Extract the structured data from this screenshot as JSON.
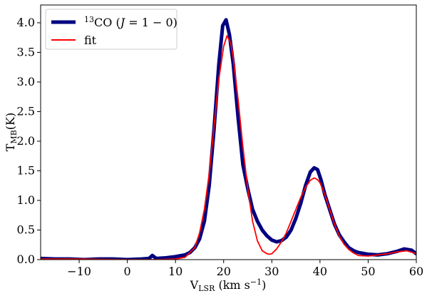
{
  "chart_data": {
    "type": "line",
    "xlabel": "V_LSR (km s^-1)",
    "ylabel": "T_MB(K)",
    "xlim": [
      -18,
      60
    ],
    "ylim": [
      0,
      4.3
    ],
    "xticks": [
      -10,
      0,
      10,
      20,
      30,
      40,
      50,
      60
    ],
    "yticks": [
      0.0,
      0.5,
      1.0,
      1.5,
      2.0,
      2.5,
      3.0,
      3.5,
      4.0
    ],
    "xtick_labels": [
      "−10",
      "0",
      "10",
      "20",
      "30",
      "40",
      "50",
      "60"
    ],
    "ytick_labels": [
      "0.0",
      "0.5",
      "1.0",
      "1.5",
      "2.0",
      "2.5",
      "3.0",
      "3.5",
      "4.0"
    ],
    "grid": false,
    "legend_position": "top-left",
    "series": [
      {
        "name": "13CO (J = 1 − 0)",
        "color": "#000080",
        "x": [
          -18,
          -15,
          -12,
          -9,
          -6,
          -3,
          0,
          3,
          4.5,
          5.2,
          6,
          8,
          10,
          12,
          13,
          14,
          15,
          16,
          17,
          18,
          19,
          19.8,
          20.5,
          21.2,
          22,
          23,
          24,
          25,
          26,
          27,
          28,
          29,
          30,
          31,
          32,
          33,
          34,
          35,
          36,
          37,
          38,
          38.8,
          39.5,
          40.2,
          41,
          42,
          43,
          44,
          45,
          46,
          47,
          48,
          50,
          52,
          54,
          56,
          57.5,
          59,
          60
        ],
        "y": [
          0.02,
          0.01,
          0.01,
          0.0,
          0.01,
          0.01,
          0.0,
          0.01,
          0.02,
          0.07,
          0.02,
          0.03,
          0.05,
          0.08,
          0.12,
          0.2,
          0.35,
          0.65,
          1.25,
          2.2,
          3.3,
          3.95,
          4.05,
          3.8,
          3.3,
          2.4,
          1.6,
          1.2,
          0.85,
          0.65,
          0.5,
          0.4,
          0.33,
          0.3,
          0.32,
          0.38,
          0.5,
          0.7,
          0.95,
          1.25,
          1.48,
          1.55,
          1.52,
          1.35,
          1.1,
          0.85,
          0.6,
          0.42,
          0.3,
          0.2,
          0.15,
          0.12,
          0.09,
          0.08,
          0.1,
          0.14,
          0.18,
          0.16,
          0.1
        ]
      },
      {
        "name": "fit",
        "color": "#ff0000",
        "x": [
          -18,
          -10,
          0,
          6,
          10,
          12,
          14,
          15,
          16,
          17,
          18,
          19,
          20,
          20.7,
          21.5,
          22,
          23,
          24,
          25,
          26,
          27,
          28,
          29,
          29.5,
          30,
          31,
          32,
          33,
          34,
          35,
          36,
          37,
          38,
          38.8,
          39.5,
          40,
          41,
          42,
          43,
          44,
          45,
          46,
          47,
          48,
          50,
          52,
          54,
          56,
          58,
          60
        ],
        "y": [
          0.01,
          0.01,
          0.0,
          0.0,
          0.01,
          0.04,
          0.2,
          0.45,
          0.85,
          1.45,
          2.25,
          3.05,
          3.6,
          3.78,
          3.65,
          3.4,
          2.7,
          1.9,
          1.2,
          0.65,
          0.32,
          0.15,
          0.1,
          0.09,
          0.1,
          0.18,
          0.3,
          0.45,
          0.65,
          0.85,
          1.05,
          1.22,
          1.34,
          1.38,
          1.35,
          1.3,
          1.1,
          0.85,
          0.6,
          0.4,
          0.26,
          0.17,
          0.11,
          0.07,
          0.06,
          0.08,
          0.1,
          0.13,
          0.15,
          0.1
        ]
      }
    ]
  }
}
